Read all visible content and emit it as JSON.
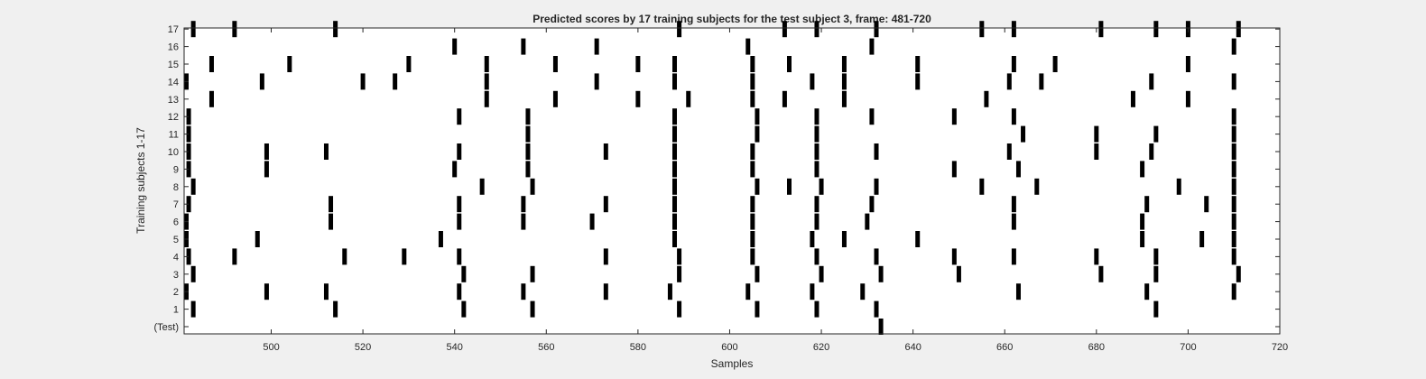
{
  "chart_data": {
    "type": "raster",
    "title": "Predicted scores by 17 training subjects for the test subject 3, frame: 481-720",
    "xlabel": "Samples",
    "ylabel": "Training subjects 1-17",
    "xlim": [
      481,
      720
    ],
    "xticks": [
      500,
      520,
      540,
      560,
      580,
      600,
      620,
      640,
      660,
      680,
      700,
      720
    ],
    "ytick_labels": [
      "(Test)",
      "1",
      "2",
      "3",
      "4",
      "5",
      "6",
      "7",
      "8",
      "9",
      "10",
      "11",
      "12",
      "13",
      "14",
      "15",
      "16",
      "17"
    ],
    "grid": false,
    "series": [
      {
        "values": [
          633
        ]
      },
      {
        "values": [
          483,
          514,
          542,
          557,
          589,
          606,
          619,
          632,
          693
        ]
      },
      {
        "values": [
          481,
          499,
          512,
          541,
          555,
          573,
          587,
          604,
          618,
          629,
          663,
          691,
          710
        ]
      },
      {
        "values": [
          483,
          542,
          557,
          589,
          606,
          620,
          633,
          650,
          681,
          693,
          711
        ]
      },
      {
        "values": [
          482,
          492,
          516,
          529,
          541,
          573,
          589,
          605,
          619,
          632,
          649,
          662,
          680,
          693,
          710
        ]
      },
      {
        "values": [
          481,
          497,
          537,
          588,
          605,
          618,
          625,
          641,
          690,
          703,
          710
        ]
      },
      {
        "values": [
          481,
          513,
          541,
          555,
          570,
          588,
          605,
          619,
          630,
          662,
          690,
          710
        ]
      },
      {
        "values": [
          482,
          513,
          541,
          555,
          573,
          588,
          605,
          619,
          631,
          662,
          691,
          704,
          710
        ]
      },
      {
        "values": [
          483,
          546,
          557,
          588,
          606,
          613,
          620,
          632,
          655,
          667,
          698,
          710
        ]
      },
      {
        "values": [
          482,
          499,
          540,
          556,
          588,
          605,
          619,
          649,
          663,
          690,
          710
        ]
      },
      {
        "values": [
          482,
          499,
          512,
          541,
          556,
          573,
          588,
          605,
          619,
          632,
          661,
          680,
          692,
          710
        ]
      },
      {
        "values": [
          482,
          556,
          588,
          606,
          619,
          664,
          680,
          693,
          710
        ]
      },
      {
        "values": [
          482,
          541,
          556,
          588,
          606,
          619,
          631,
          649,
          662,
          710
        ]
      },
      {
        "values": [
          487,
          547,
          562,
          580,
          591,
          605,
          612,
          625,
          656,
          688,
          700
        ]
      },
      {
        "values": [
          481,
          498,
          520,
          527,
          547,
          571,
          588,
          605,
          618,
          625,
          641,
          661,
          668,
          692,
          710
        ]
      },
      {
        "values": [
          487,
          504,
          530,
          547,
          562,
          580,
          588,
          605,
          613,
          625,
          641,
          662,
          671,
          700
        ]
      },
      {
        "values": [
          540,
          555,
          571,
          604,
          631,
          710
        ]
      },
      {
        "values": [
          483,
          492,
          514,
          589,
          612,
          619,
          632,
          655,
          662,
          681,
          693,
          700,
          711
        ]
      }
    ]
  }
}
